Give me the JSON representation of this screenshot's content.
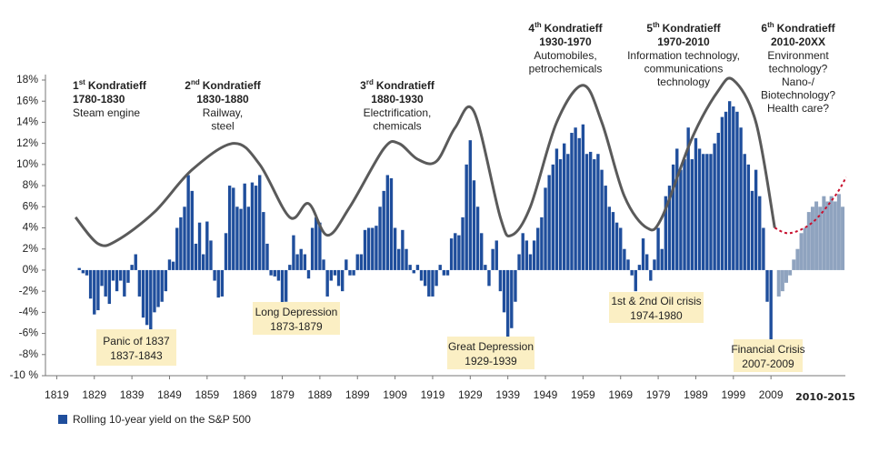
{
  "chart_data": {
    "type": "bar",
    "xlim": [
      1816,
      2030
    ],
    "ylim": [
      -10,
      18
    ],
    "xticks": [
      1819,
      1829,
      1839,
      1849,
      1859,
      1869,
      1879,
      1889,
      1899,
      1909,
      1919,
      1929,
      1939,
      1949,
      1959,
      1969,
      1979,
      1989,
      1999,
      2009
    ],
    "x_annotation": "2010-2015",
    "yticks": [
      {
        "value": -10,
        "label": "-10 %"
      },
      {
        "value": -8,
        "label": "-8%"
      },
      {
        "value": -6,
        "label": "-6%"
      },
      {
        "value": -4,
        "label": "-4%"
      },
      {
        "value": -2,
        "label": "-2%"
      },
      {
        "value": 0,
        "label": "0%"
      },
      {
        "value": 2,
        "label": "2%"
      },
      {
        "value": 4,
        "label": "4%"
      },
      {
        "value": 6,
        "label": "6%"
      },
      {
        "value": 8,
        "label": "8%"
      },
      {
        "value": 10,
        "label": "10%"
      },
      {
        "value": 12,
        "label": "12%"
      },
      {
        "value": 14,
        "label": "14%"
      },
      {
        "value": 16,
        "label": "16%"
      },
      {
        "value": 18,
        "label": "18%"
      }
    ],
    "series": [
      {
        "name": "Rolling 10-year yield on the S&P 500",
        "type": "bar",
        "color": "#1f4e9c",
        "x": [
          1825,
          1826,
          1827,
          1828,
          1829,
          1830,
          1831,
          1832,
          1833,
          1834,
          1835,
          1836,
          1837,
          1838,
          1839,
          1840,
          1841,
          1842,
          1843,
          1844,
          1845,
          1846,
          1847,
          1848,
          1849,
          1850,
          1851,
          1852,
          1853,
          1854,
          1855,
          1856,
          1857,
          1858,
          1859,
          1860,
          1861,
          1862,
          1863,
          1864,
          1865,
          1866,
          1867,
          1868,
          1869,
          1870,
          1871,
          1872,
          1873,
          1874,
          1875,
          1876,
          1877,
          1878,
          1879,
          1880,
          1881,
          1882,
          1883,
          1884,
          1885,
          1886,
          1887,
          1888,
          1889,
          1890,
          1891,
          1892,
          1893,
          1894,
          1895,
          1896,
          1897,
          1898,
          1899,
          1900,
          1901,
          1902,
          1903,
          1904,
          1905,
          1906,
          1907,
          1908,
          1909,
          1910,
          1911,
          1912,
          1913,
          1914,
          1915,
          1916,
          1917,
          1918,
          1919,
          1920,
          1921,
          1922,
          1923,
          1924,
          1925,
          1926,
          1927,
          1928,
          1929,
          1930,
          1931,
          1932,
          1933,
          1934,
          1935,
          1936,
          1937,
          1938,
          1939,
          1940,
          1941,
          1942,
          1943,
          1944,
          1945,
          1946,
          1947,
          1948,
          1949,
          1950,
          1951,
          1952,
          1953,
          1954,
          1955,
          1956,
          1957,
          1958,
          1959,
          1960,
          1961,
          1962,
          1963,
          1964,
          1965,
          1966,
          1967,
          1968,
          1969,
          1970,
          1971,
          1972,
          1973,
          1974,
          1975,
          1976,
          1977,
          1978,
          1979,
          1980,
          1981,
          1982,
          1983,
          1984,
          1985,
          1986,
          1987,
          1988,
          1989,
          1990,
          1991,
          1992,
          1993,
          1994,
          1995,
          1996,
          1997,
          1998,
          1999,
          2000,
          2001,
          2002,
          2003,
          2004,
          2005,
          2006,
          2007,
          2008,
          2009
        ],
        "values": [
          0.2,
          -0.3,
          -0.5,
          -2.7,
          -4.2,
          -3.8,
          -1.5,
          -2.5,
          -3.2,
          -1.0,
          -2.0,
          -1.0,
          -2.5,
          -1.2,
          0.5,
          1.5,
          -2.5,
          -4.5,
          -5.2,
          -5.8,
          -4.0,
          -3.5,
          -3.0,
          -2.0,
          1.0,
          0.8,
          4.0,
          5.0,
          6.0,
          9.0,
          7.5,
          2.5,
          4.5,
          1.5,
          4.6,
          2.8,
          -1.0,
          -2.6,
          -2.5,
          3.5,
          8.0,
          7.8,
          6.0,
          5.8,
          8.2,
          6.0,
          8.3,
          8.0,
          9.0,
          5.5,
          2.5,
          -0.5,
          -0.6,
          -1.0,
          -3.5,
          -3.0,
          0.5,
          3.3,
          1.5,
          2.0,
          1.5,
          -0.8,
          4.0,
          5.0,
          4.5,
          1.0,
          -2.5,
          -1.0,
          -0.5,
          -1.5,
          -2.0,
          1.0,
          -0.5,
          -0.5,
          1.5,
          1.5,
          3.8,
          4.0,
          4.0,
          4.2,
          6.0,
          7.5,
          9.0,
          8.7,
          4.0,
          2.0,
          3.8,
          2.0,
          0.5,
          -0.3,
          0.5,
          -1.0,
          -1.5,
          -2.5,
          -2.5,
          -1.5,
          0.5,
          -0.5,
          -0.5,
          3.0,
          3.5,
          3.3,
          5.0,
          10.0,
          12.3,
          8.5,
          6.0,
          3.5,
          0.5,
          -1.5,
          2.0,
          2.8,
          -2.0,
          -4.0,
          -6.5,
          -5.5,
          -3.0,
          1.5,
          3.5,
          2.8,
          1.5,
          2.8,
          4.0,
          5.0,
          7.8,
          9.0,
          10.0,
          11.5,
          10.5,
          12.0,
          11.0,
          13.0,
          13.5,
          12.5,
          13.8,
          11.0,
          11.2,
          10.5,
          11.0,
          9.5,
          8.0,
          6.0,
          5.5,
          4.5,
          4.0,
          2.0,
          1.0,
          -0.5,
          -2.0,
          0.5,
          3.0,
          1.5,
          -1.0,
          1.0,
          4.0,
          2.0,
          7.0,
          8.0,
          10.0,
          11.5,
          9.5,
          10.5,
          13.5,
          10.5,
          12.5,
          11.5,
          11.0,
          11.0,
          11.0,
          12.0,
          13.0,
          14.5,
          15.0,
          16.0,
          15.5,
          15.0,
          13.5,
          11.0,
          10.0,
          7.5,
          9.5,
          7.0,
          4.0,
          -3.0,
          -7.5
        ]
      },
      {
        "type": "bar",
        "color": "#8fa3bf",
        "x": [
          2011,
          2012,
          2013,
          2014,
          2015,
          2016,
          2017,
          2018,
          2019,
          2020,
          2021,
          2022,
          2023,
          2024,
          2025,
          2026,
          2027,
          2028
        ],
        "values": [
          -2.5,
          -2.0,
          -1.2,
          -0.5,
          1.0,
          2.0,
          3.5,
          4.0,
          5.5,
          6.0,
          6.5,
          6.0,
          7.0,
          6.5,
          7.0,
          6.5,
          7.2,
          6.0
        ]
      },
      {
        "type": "line",
        "color": "#5a5a5a",
        "x": [
          1824,
          1830,
          1835,
          1845,
          1855,
          1866,
          1873,
          1881,
          1886,
          1891,
          1897,
          1906,
          1910,
          1915,
          1920,
          1925,
          1930,
          1937,
          1940,
          1945,
          1952,
          1959,
          1964,
          1970,
          1976,
          1980,
          1988,
          1995,
          1999,
          2005,
          2010
        ],
        "values": [
          5,
          2.5,
          2.8,
          5.5,
          9.5,
          12,
          10,
          5,
          6.3,
          3.3,
          6,
          11.5,
          12,
          10.5,
          10.3,
          13.5,
          15,
          5,
          3.3,
          6,
          14,
          17.5,
          14,
          7,
          4,
          5,
          12.5,
          17,
          18,
          14,
          4
        ]
      },
      {
        "type": "line",
        "dashed": true,
        "color": "#c8102e",
        "x": [
          2010,
          2014,
          2020,
          2026,
          2029
        ],
        "values": [
          4,
          3.5,
          4.5,
          7,
          8.8
        ]
      }
    ],
    "waves": [
      {
        "ordinal": "1",
        "suffix": "st",
        "name": "Kondratieff",
        "years": "1780-1830",
        "desc": [
          "Steam engine"
        ]
      },
      {
        "ordinal": "2",
        "suffix": "nd",
        "name": "Kondratieff",
        "years": "1830-1880",
        "desc": [
          "Railway,",
          "steel"
        ]
      },
      {
        "ordinal": "3",
        "suffix": "rd",
        "name": "Kondratieff",
        "years": "1880-1930",
        "desc": [
          "Electrification,",
          "chemicals"
        ]
      },
      {
        "ordinal": "4",
        "suffix": "th",
        "name": "Kondratieff",
        "years": "1930-1970",
        "desc": [
          "Automobiles,",
          "petrochemicals"
        ]
      },
      {
        "ordinal": "5",
        "suffix": "th",
        "name": "Kondratieff",
        "years": "1970-2010",
        "desc": [
          "Information technology,",
          "communications",
          "technology"
        ]
      },
      {
        "ordinal": "6",
        "suffix": "th",
        "name": "Kondratieff",
        "years": "2010-20XX",
        "desc": [
          "Environment",
          "technology?",
          "Nano-/",
          "Biotechnology?",
          "Health care?"
        ],
        "desc_color": "#c8102e"
      }
    ],
    "crises": [
      {
        "name": "Panic of 1837",
        "years": "1837-1843"
      },
      {
        "name": "Long Depression",
        "years": "1873-1879"
      },
      {
        "name": "Great Depression",
        "years": "1929-1939"
      },
      {
        "name": "1st & 2nd Oil crisis",
        "years": "1974-1980"
      },
      {
        "name": "Financial Crisis",
        "years": "2007-2009"
      }
    ],
    "crisis_color": "#fbefc4"
  }
}
